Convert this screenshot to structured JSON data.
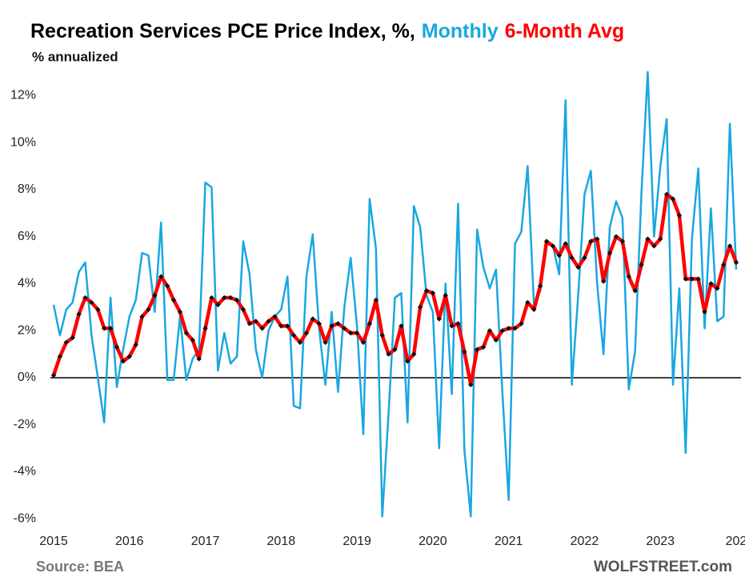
{
  "chart_data": {
    "type": "line",
    "title": "Recreation Services PCE Price Index, %,",
    "subtitle": "% annualized",
    "source": "Source: BEA",
    "credit": "WOLFSTREET.com",
    "categories": [
      "2015",
      null,
      null,
      null,
      null,
      null,
      null,
      null,
      null,
      null,
      null,
      null,
      "2016",
      null,
      null,
      null,
      null,
      null,
      null,
      null,
      null,
      null,
      null,
      null,
      "2017",
      null,
      null,
      null,
      null,
      null,
      null,
      null,
      null,
      null,
      null,
      null,
      "2018",
      null,
      null,
      null,
      null,
      null,
      null,
      null,
      null,
      null,
      null,
      null,
      "2019",
      null,
      null,
      null,
      null,
      null,
      null,
      null,
      null,
      null,
      null,
      null,
      "2020",
      null,
      null,
      null,
      null,
      null,
      null,
      null,
      null,
      null,
      null,
      null,
      "2021",
      null,
      null,
      null,
      null,
      null,
      null,
      null,
      null,
      null,
      null,
      null,
      "2022",
      null,
      null,
      null,
      null,
      null,
      null,
      null,
      null,
      null,
      null,
      null,
      "2023",
      null,
      null,
      null,
      null,
      null,
      null,
      null,
      null,
      null,
      null,
      null,
      "202"
    ],
    "series": [
      {
        "name": "Monthly",
        "color": "#1aa7e0",
        "width": 2.5,
        "values": [
          3.1,
          1.8,
          2.9,
          3.2,
          4.5,
          4.9,
          1.8,
          0.0,
          -1.9,
          3.4,
          -0.4,
          1.2,
          2.6,
          3.3,
          5.3,
          5.2,
          2.8,
          6.6,
          -0.1,
          -0.1,
          2.6,
          -0.1,
          0.8,
          1.2,
          8.3,
          8.1,
          0.3,
          1.9,
          0.6,
          0.9,
          5.8,
          4.4,
          1.2,
          0.0,
          2.0,
          2.6,
          2.9,
          4.3,
          -1.2,
          -1.3,
          4.3,
          6.1,
          2.1,
          -0.3,
          2.8,
          -0.6,
          3.0,
          5.1,
          2.2,
          -2.4,
          7.6,
          5.5,
          -5.9,
          -1.5,
          3.4,
          3.6,
          -1.9,
          7.3,
          6.4,
          3.5,
          2.8,
          -3.0,
          4.0,
          -0.7,
          7.4,
          -3.1,
          -5.9,
          6.3,
          4.7,
          3.8,
          4.6,
          -0.6,
          -5.2,
          5.7,
          6.2,
          9.0,
          3.1,
          3.7,
          5.7,
          5.6,
          4.4,
          11.8,
          -0.3,
          3.5,
          7.8,
          8.8,
          4.0,
          1.0,
          6.4,
          7.5,
          6.8,
          -0.5,
          1.1,
          7.8,
          13.0,
          6.0,
          9.0,
          11.0,
          -0.3,
          3.8,
          -3.2,
          5.9,
          8.9,
          2.1,
          7.2,
          2.4,
          2.6,
          10.8,
          4.6
        ]
      },
      {
        "name": "6-Month Avg",
        "color": "#ff0000",
        "width": 4.5,
        "marker_color": "#111111",
        "values": [
          0.1,
          0.9,
          1.5,
          1.7,
          2.7,
          3.4,
          3.2,
          2.9,
          2.1,
          2.1,
          1.3,
          0.7,
          0.9,
          1.4,
          2.6,
          2.9,
          3.5,
          4.3,
          3.9,
          3.3,
          2.8,
          1.9,
          1.6,
          0.8,
          2.1,
          3.4,
          3.1,
          3.4,
          3.4,
          3.3,
          2.9,
          2.3,
          2.4,
          2.1,
          2.4,
          2.6,
          2.2,
          2.2,
          1.8,
          1.5,
          1.9,
          2.5,
          2.3,
          1.5,
          2.2,
          2.3,
          2.1,
          1.9,
          1.9,
          1.5,
          2.3,
          3.3,
          1.8,
          1.0,
          1.2,
          2.2,
          0.7,
          1.0,
          3.0,
          3.7,
          3.6,
          2.5,
          3.5,
          2.2,
          2.3,
          1.1,
          -0.3,
          1.2,
          1.3,
          2.0,
          1.6,
          2.0,
          2.1,
          2.1,
          2.3,
          3.2,
          2.9,
          3.9,
          5.8,
          5.6,
          5.2,
          5.7,
          5.1,
          4.7,
          5.1,
          5.8,
          5.9,
          4.1,
          5.3,
          6.0,
          5.8,
          4.3,
          3.7,
          4.8,
          5.9,
          5.6,
          5.9,
          7.8,
          7.6,
          6.9,
          4.2,
          4.2,
          4.2,
          2.8,
          4.0,
          3.8,
          4.8,
          5.6,
          4.9
        ]
      }
    ],
    "ylim": [
      -6.4,
      13
    ],
    "yticks": [
      {
        "value": -6,
        "label": "-6%"
      },
      {
        "value": -4,
        "label": "-4%"
      },
      {
        "value": -2,
        "label": "-2%"
      },
      {
        "value": 0,
        "label": "0%"
      },
      {
        "value": 2,
        "label": "2%"
      },
      {
        "value": 4,
        "label": "4%"
      },
      {
        "value": 6,
        "label": "6%"
      },
      {
        "value": 8,
        "label": "8%"
      },
      {
        "value": 10,
        "label": "10%"
      },
      {
        "value": 12,
        "label": "12%"
      }
    ],
    "zero_line": true,
    "grid": false
  }
}
